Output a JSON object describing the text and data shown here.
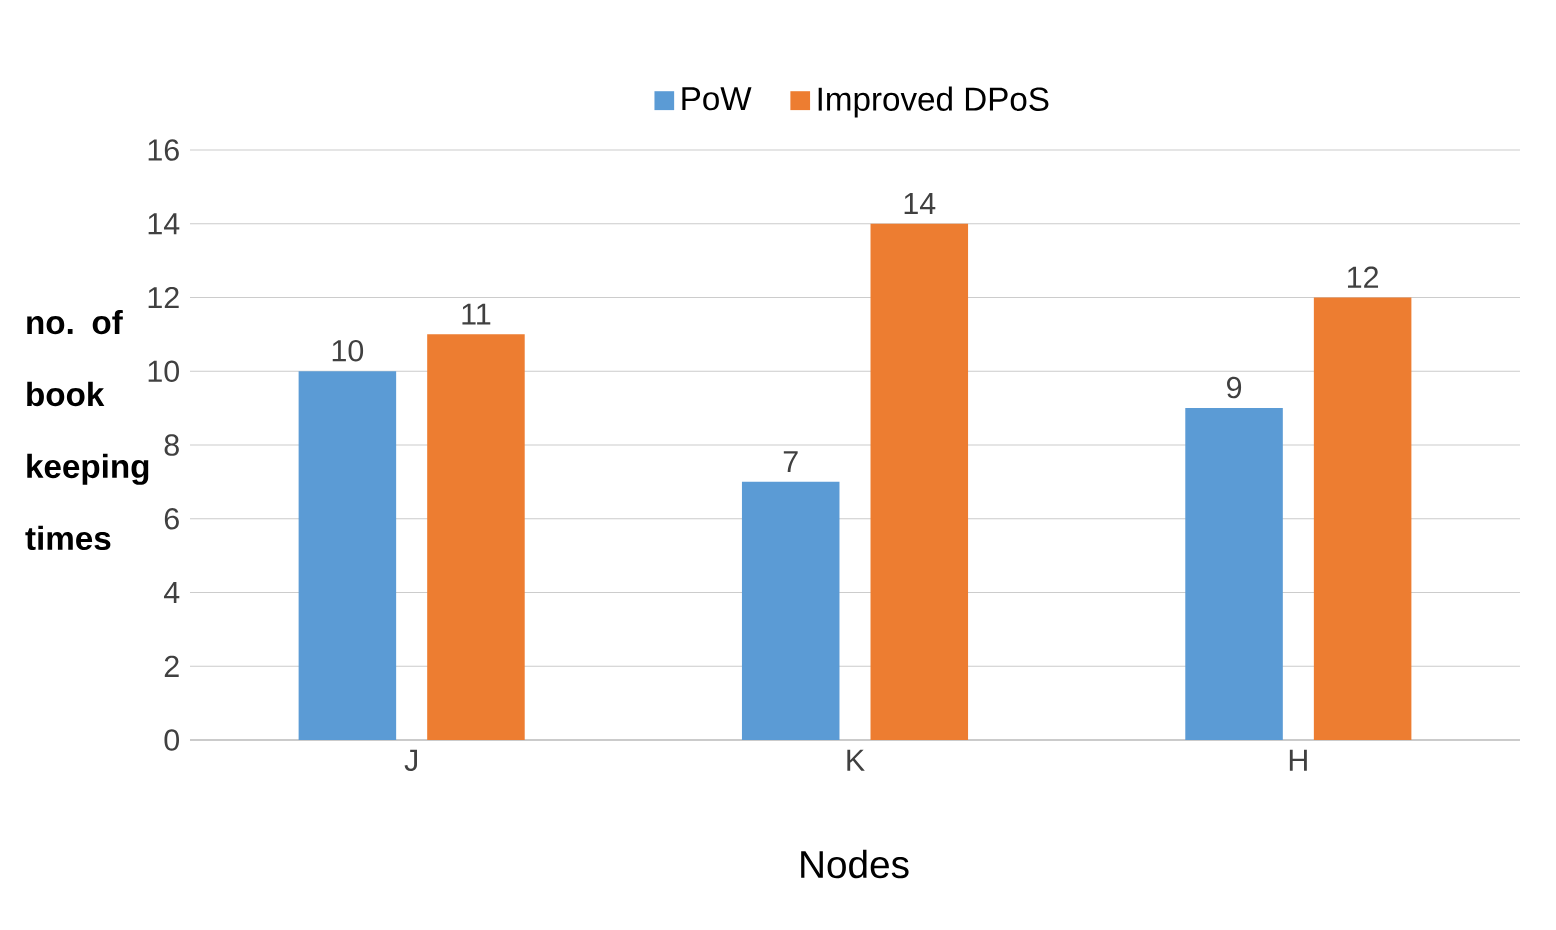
{
  "chart_data": {
    "type": "bar",
    "xlabel": "Nodes",
    "ylabel": "no. of book keeping times",
    "categories": [
      "J",
      "K",
      "H"
    ],
    "series": [
      {
        "name": "PoW",
        "color": "#5b9bd5",
        "values": [
          10,
          7,
          9
        ]
      },
      {
        "name": "Improved DPoS",
        "color": "#ed7d31",
        "values": [
          11,
          14,
          12
        ]
      }
    ],
    "ylim": [
      0,
      16
    ],
    "yticks": [
      0,
      2,
      4,
      6,
      8,
      10,
      12,
      14,
      16
    ],
    "grid": "y",
    "legend": "top",
    "data_labels": true
  }
}
